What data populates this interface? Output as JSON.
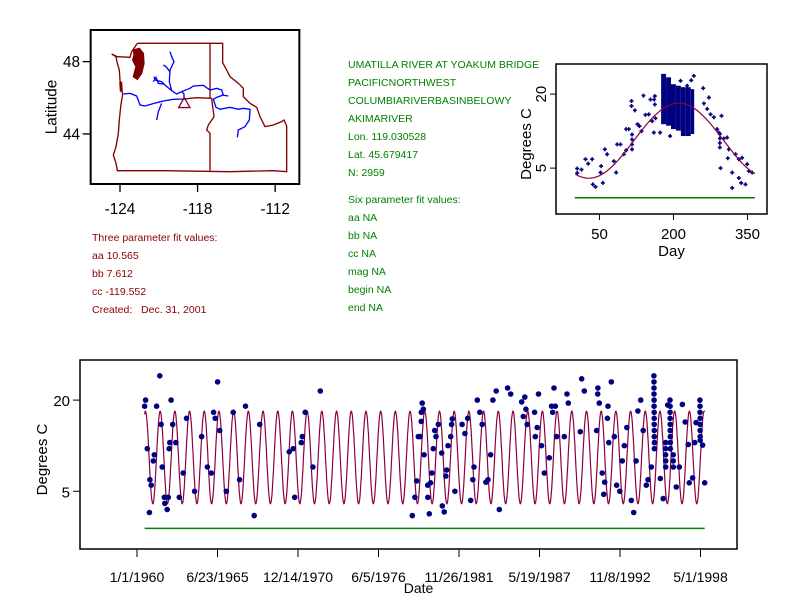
{
  "station_info": {
    "lines": [
      "UMATILLA RIVER AT YOAKUM BRIDGE",
      "PACIFICNORTHWEST",
      "COLUMBIARIVERBASINBELOWYAKIMARIVER",
      "Lon. 119.030528",
      "Lat. 45.679417",
      "N: 2959"
    ],
    "six_param_title": "Six parameter fit values:",
    "six_param": [
      "aa NA",
      "bb NA",
      "cc NA",
      "mag NA",
      "begin NA",
      "end NA"
    ],
    "color": "#008000"
  },
  "three_param": {
    "title": "Three parameter fit values:",
    "lines": [
      "aa 10.565",
      "bb 7.612",
      "cc -119.552",
      "Created:   Dec. 31, 2001"
    ],
    "aa": 10.565,
    "bb": 7.612,
    "cc": -119.552,
    "color": "#8b0000"
  },
  "chart_data": [
    {
      "type": "map",
      "ylabel": "Latitude",
      "xlim": [
        -126.27,
        -110.13
      ],
      "ylim": [
        41.23,
        49.75
      ],
      "xticks": [
        -124,
        -118,
        -112
      ],
      "xtick_labels": [
        "-124",
        "-118",
        "-112"
      ],
      "yticks": [
        44,
        48
      ],
      "ytick_labels": [
        "44",
        "48"
      ],
      "station": {
        "lon": -119.030528,
        "lat": 45.679417,
        "marker": "triangle"
      },
      "colors": {
        "boundaries": "#800000",
        "rivers": "#0000ff",
        "station": "#800040"
      }
    },
    {
      "type": "scatter",
      "xlabel": "Day",
      "ylabel": "Degrees C",
      "xlim": [
        -38.1,
        389.6
      ],
      "ylim": [
        -4.3,
        26.1
      ],
      "xticks": [
        50,
        200,
        350
      ],
      "xtick_labels": [
        "50",
        "200",
        "350"
      ],
      "yticks": [
        5,
        20
      ],
      "ytick_labels": [
        "5",
        "20"
      ],
      "grid": false,
      "points": [
        [
          4.8,
          4.9
        ],
        [
          5,
          4.0
        ],
        [
          13.6,
          4.7
        ],
        [
          21.7,
          6.8
        ],
        [
          27.1,
          5.9
        ],
        [
          35.2,
          6.8
        ],
        [
          36.6,
          1.7
        ],
        [
          42,
          1.2
        ],
        [
          52.1,
          4.1
        ],
        [
          53.4,
          5.4
        ],
        [
          56.8,
          2.0
        ],
        [
          60.9,
          8.8
        ],
        [
          65.6,
          7.8
        ],
        [
          79.1,
          6.4
        ],
        [
          83.9,
          4.1
        ],
        [
          85.9,
          9.8
        ],
        [
          92.6,
          9.8
        ],
        [
          99.4,
          7.8
        ],
        [
          104.1,
          8.6
        ],
        [
          104.1,
          12.9
        ],
        [
          109.5,
          12.9
        ],
        [
          116,
          11.8
        ],
        [
          116,
          10.8
        ],
        [
          116,
          9.8
        ],
        [
          116,
          8.8
        ],
        [
          115,
          18.6
        ],
        [
          115,
          17.6
        ],
        [
          121.7,
          16.7
        ],
        [
          127.1,
          13.9
        ],
        [
          131.1,
          13.5
        ],
        [
          135.2,
          12.5
        ],
        [
          139.2,
          19.7
        ],
        [
          143.3,
          15.8
        ],
        [
          150,
          15.9
        ],
        [
          153.4,
          18.9
        ],
        [
          156.8,
          14.5
        ],
        [
          160.9,
          18.9
        ],
        [
          162.2,
          17.9
        ],
        [
          160.2,
          12.2
        ],
        [
          162.2,
          19.6
        ],
        [
          173,
          12.2
        ],
        [
          163.6,
          15.1
        ],
        [
          193.3,
          11.5
        ],
        [
          214.3,
          22.7
        ],
        [
          227.8,
          21.7
        ],
        [
          241.3,
          23.7
        ],
        [
          236,
          22.8
        ],
        [
          260.3,
          21.2
        ],
        [
          271.8,
          19.3
        ],
        [
          261.7,
          18.1
        ],
        [
          268.4,
          17.0
        ],
        [
          275.2,
          15.9
        ],
        [
          281.9,
          15.3
        ],
        [
          297.4,
          15.6
        ],
        [
          288.6,
          12.9
        ],
        [
          292,
          12.2
        ],
        [
          294,
          11.9
        ],
        [
          294,
          11.0
        ],
        [
          294,
          10.1
        ],
        [
          294,
          9.2
        ],
        [
          302.1,
          11.0
        ],
        [
          308.8,
          11.2
        ],
        [
          312.2,
          8.8
        ],
        [
          310.2,
          7.0
        ],
        [
          325.8,
          7.8
        ],
        [
          332.5,
          6.8
        ],
        [
          339.2,
          7.1
        ],
        [
          349.4,
          5.8
        ],
        [
          352.7,
          4.4
        ],
        [
          359.5,
          4.1
        ],
        [
          295.4,
          5.0
        ],
        [
          319.1,
          4.1
        ],
        [
          332.5,
          3.0
        ],
        [
          337.2,
          2.0
        ],
        [
          346,
          1.7
        ],
        [
          319.1,
          1.0
        ]
      ],
      "dense_band": [
        [
          175,
          185,
          13.9,
          24.1
        ],
        [
          185,
          195,
          13.6,
          23.4
        ],
        [
          195,
          205,
          12.9,
          22.0
        ],
        [
          205,
          215,
          12.6,
          21.7
        ],
        [
          215,
          225,
          11.5,
          21.4
        ],
        [
          225,
          235,
          11.5,
          21.4
        ],
        [
          235,
          242,
          11.9,
          21.0
        ]
      ],
      "fit_curve": "three_param",
      "reference_line": {
        "value": -1,
        "range": [
          0,
          365
        ]
      },
      "colors": {
        "points": "#000080",
        "fit": "#8b0040",
        "reference": "#008000"
      }
    },
    {
      "type": "line",
      "xlabel": "Date",
      "ylabel": "Degrees C",
      "xlim": [
        "1956-02-15",
        "2000-10-24"
      ],
      "ylim": [
        -4.5,
        26.6
      ],
      "xtick_labels": [
        "1/1/1960",
        "6/23/1965",
        "12/14/1970",
        "6/5/1976",
        "11/26/1981",
        "5/19/1987",
        "11/8/1992",
        "5/1/1998"
      ],
      "yticks": [
        5,
        20
      ],
      "ytick_labels": [
        "5",
        "20"
      ],
      "grid": false,
      "observations": [
        [
          "1960-07-07",
          19.0
        ],
        [
          "1960-08-03",
          20.0
        ],
        [
          "1960-09-12",
          12.0
        ],
        [
          "1960-11-03",
          1.5
        ],
        [
          "1960-11-16",
          6.9
        ],
        [
          "1960-12-19",
          6.0
        ],
        [
          "1961-02-10",
          10.0
        ],
        [
          "1961-03-05",
          11.0
        ],
        [
          "1961-05-03",
          19.0
        ],
        [
          "1961-07-21",
          24.0
        ],
        [
          "1961-08-23",
          16.0
        ],
        [
          "1961-09-18",
          9.0
        ],
        [
          "1961-11-10",
          4.0
        ],
        [
          "1961-11-23",
          3.0
        ],
        [
          "1962-01-21",
          2.0
        ],
        [
          "1962-02-16",
          4.0
        ],
        [
          "1962-03-12",
          12.0
        ],
        [
          "1962-03-25",
          13.0
        ],
        [
          "1962-04-27",
          20.0
        ],
        [
          "1962-06-05",
          16.0
        ],
        [
          "1962-08-23",
          13.0
        ],
        [
          "1962-11-16",
          4.0
        ],
        [
          "1963-02-23",
          8.0
        ],
        [
          "1963-05-16",
          17.0
        ],
        [
          "1963-12-02",
          5.0
        ],
        [
          "1964-05-23",
          14.0
        ],
        [
          "1964-10-14",
          9.0
        ],
        [
          "1965-01-21",
          8.0
        ],
        [
          "1965-03-18",
          18.0
        ],
        [
          "1965-04-27",
          17.0
        ],
        [
          "1965-06-25",
          23.0
        ],
        [
          "1965-08-16",
          15.0
        ],
        [
          "1966-01-27",
          5.0
        ],
        [
          "1966-07-17",
          18.0
        ],
        [
          "1966-12-25",
          6.9
        ],
        [
          "1967-05-20",
          19.0
        ],
        [
          "1967-12-22",
          1.0
        ],
        [
          "1968-05-06",
          16.0
        ],
        [
          "1970-05-09",
          11.5
        ],
        [
          "1970-08-16",
          12.0
        ],
        [
          "1970-09-22",
          4.0
        ],
        [
          "1971-03-05",
          13.0
        ],
        [
          "1971-04-01",
          14.0
        ],
        [
          "1971-06-12",
          18.0
        ],
        [
          "1971-12-19",
          9.0
        ],
        [
          "1972-06-19",
          21.5
        ],
        [
          "1978-09-22",
          1.0
        ],
        [
          "1978-11-27",
          4.0
        ],
        [
          "1979-01-11",
          6.7
        ],
        [
          "1979-02-20",
          14.0
        ],
        [
          "1979-04-01",
          14.0
        ],
        [
          "1979-05-03",
          16.5
        ],
        [
          "1979-05-04",
          18.0
        ],
        [
          "1979-05-26",
          19.5
        ],
        [
          "1979-06-22",
          18.5
        ],
        [
          "1979-07-14",
          11.0
        ],
        [
          "1979-10-11",
          6.0
        ],
        [
          "1979-10-12",
          4.0
        ],
        [
          "1979-11-20",
          1.3
        ],
        [
          "1979-12-22",
          6.4
        ],
        [
          "1980-01-24",
          8.0
        ],
        [
          "1980-02-26",
          12.0
        ],
        [
          "1980-04-01",
          15.0
        ],
        [
          "1980-05-03",
          14.0
        ],
        [
          "1980-07-01",
          16.0
        ],
        [
          "1980-09-22",
          11.3
        ],
        [
          "1980-10-07",
          2.6
        ],
        [
          "1980-11-23",
          1.6
        ],
        [
          "1981-01-01",
          7.5
        ],
        [
          "1981-01-24",
          8.5
        ],
        [
          "1981-02-26",
          12.5
        ],
        [
          "1981-05-03",
          14.0
        ],
        [
          "1981-05-26",
          16.0
        ],
        [
          "1981-06-12",
          16.9
        ],
        [
          "1981-08-16",
          5.0
        ],
        [
          "1982-02-10",
          16.0
        ],
        [
          "1982-04-21",
          14.5
        ],
        [
          "1982-07-01",
          17.0
        ],
        [
          "1982-09-12",
          3.5
        ],
        [
          "1982-11-03",
          6.9
        ],
        [
          "1982-12-05",
          9.0
        ],
        [
          "1983-02-23",
          20.0
        ],
        [
          "1983-04-27",
          18.0
        ],
        [
          "1983-06-25",
          16.0
        ],
        [
          "1983-09-25",
          6.5
        ],
        [
          "1983-11-16",
          6.9
        ],
        [
          "1984-01-21",
          11.0
        ],
        [
          "1984-03-18",
          20.0
        ],
        [
          "1984-06-08",
          21.5
        ],
        [
          "1984-08-23",
          2.0
        ],
        [
          "1985-03-18",
          22.0
        ],
        [
          "1985-06-02",
          21.0
        ],
        [
          "1986-03-02",
          19.7
        ],
        [
          "1986-04-11",
          17.3
        ],
        [
          "1986-05-20",
          20.5
        ],
        [
          "1986-06-15",
          18.5
        ],
        [
          "1986-07-17",
          16.0
        ],
        [
          "1987-01-17",
          18.0
        ],
        [
          "1987-02-03",
          14.0
        ],
        [
          "1987-03-22",
          15.5
        ],
        [
          "1987-04-24",
          21.0
        ],
        [
          "1987-07-07",
          12.5
        ],
        [
          "1987-09-15",
          8.0
        ],
        [
          "1988-01-17",
          10.5
        ],
        [
          "1988-03-15",
          19.0
        ],
        [
          "1988-04-11",
          18.0
        ],
        [
          "1988-05-13",
          22.0
        ],
        [
          "1988-06-15",
          19.0
        ],
        [
          "1988-07-17",
          14.0
        ],
        [
          "1989-01-24",
          14.0
        ],
        [
          "1989-04-01",
          21.0
        ],
        [
          "1989-05-03",
          19.5
        ],
        [
          "1990-02-26",
          14.8
        ],
        [
          "1990-04-01",
          23.5
        ],
        [
          "1990-06-05",
          21.5
        ],
        [
          "1991-04-07",
          15.0
        ],
        [
          "1991-05-03",
          21.0
        ],
        [
          "1991-05-09",
          22.0
        ],
        [
          "1991-06-12",
          19.5
        ],
        [
          "1991-08-23",
          8.0
        ],
        [
          "1991-10-01",
          4.5
        ],
        [
          "1991-10-24",
          6.5
        ],
        [
          "1992-01-01",
          17.0
        ],
        [
          "1992-01-14",
          19.0
        ],
        [
          "1992-02-03",
          13.0
        ],
        [
          "1992-04-07",
          23.0
        ],
        [
          "1992-06-19",
          14.0
        ],
        [
          "1992-08-16",
          6.0
        ],
        [
          "1992-11-03",
          5.0
        ],
        [
          "1993-01-04",
          10.0
        ],
        [
          "1993-02-23",
          12.5
        ],
        [
          "1993-04-27",
          15.5
        ],
        [
          "1993-08-16",
          3.5
        ],
        [
          "1993-10-14",
          1.5
        ],
        [
          "1993-12-12",
          10.0
        ],
        [
          "1994-01-27",
          18.2
        ],
        [
          "1994-04-07",
          20.0
        ],
        [
          "1994-06-08",
          15.0
        ],
        [
          "1994-08-23",
          6.0
        ],
        [
          "1994-10-04",
          6.9
        ],
        [
          "1994-12-25",
          9.0
        ],
        [
          "1995-03-01",
          24.0
        ],
        [
          "1995-03-02",
          23.0
        ],
        [
          "1995-03-03",
          22.0
        ],
        [
          "1995-03-04",
          21.0
        ],
        [
          "1995-03-05",
          20.0
        ],
        [
          "1995-03-06",
          19.0
        ],
        [
          "1995-03-07",
          18.0
        ],
        [
          "1995-03-08",
          17.0
        ],
        [
          "1995-03-09",
          16.0
        ],
        [
          "1995-03-10",
          15.0
        ],
        [
          "1995-03-11",
          14.0
        ],
        [
          "1995-03-12",
          13.0
        ],
        [
          "1995-03-13",
          12.0
        ],
        [
          "1995-08-06",
          7.1
        ],
        [
          "1995-10-17",
          3.8
        ],
        [
          "1995-12-15",
          13.0
        ],
        [
          "1995-12-16",
          12.0
        ],
        [
          "1995-12-17",
          11.0
        ],
        [
          "1995-12-18",
          10.0
        ],
        [
          "1995-12-19",
          9.0
        ],
        [
          "1996-02-06",
          19.2
        ],
        [
          "1996-04-04",
          20.0
        ],
        [
          "1996-04-05",
          19.0
        ],
        [
          "1996-04-06",
          18.0
        ],
        [
          "1996-04-07",
          17.0
        ],
        [
          "1996-04-08",
          16.0
        ],
        [
          "1996-04-09",
          15.0
        ],
        [
          "1996-04-10",
          14.0
        ],
        [
          "1996-04-11",
          13.0
        ],
        [
          "1996-04-12",
          12.0
        ],
        [
          "1996-06-22",
          11.0
        ],
        [
          "1996-06-23",
          10.0
        ],
        [
          "1996-06-24",
          9.0
        ],
        [
          "1996-09-08",
          5.7
        ],
        [
          "1996-11-20",
          9.0
        ],
        [
          "1997-02-06",
          19.3
        ],
        [
          "1997-04-17",
          16.4
        ],
        [
          "1997-07-01",
          12.7
        ],
        [
          "1997-07-24",
          6.4
        ],
        [
          "1997-10-17",
          7.2
        ],
        [
          "1997-12-08",
          13.0
        ],
        [
          "1998-01-11",
          16.3
        ],
        [
          "1998-04-17",
          20.0
        ],
        [
          "1998-04-18",
          19.0
        ],
        [
          "1998-04-19",
          18.0
        ],
        [
          "1998-04-20",
          17.0
        ],
        [
          "1998-04-21",
          16.0
        ],
        [
          "1998-04-22",
          15.0
        ],
        [
          "1998-04-23",
          14.0
        ],
        [
          "1998-04-24",
          13.4
        ],
        [
          "1998-06-22",
          12.6
        ],
        [
          "1998-08-13",
          6.4
        ]
      ],
      "fit_curve": "three_param",
      "reference_line": {
        "value": -1.1
      },
      "colors": {
        "points": "#000080",
        "fit": "#8b0040",
        "reference": "#008000"
      }
    }
  ]
}
